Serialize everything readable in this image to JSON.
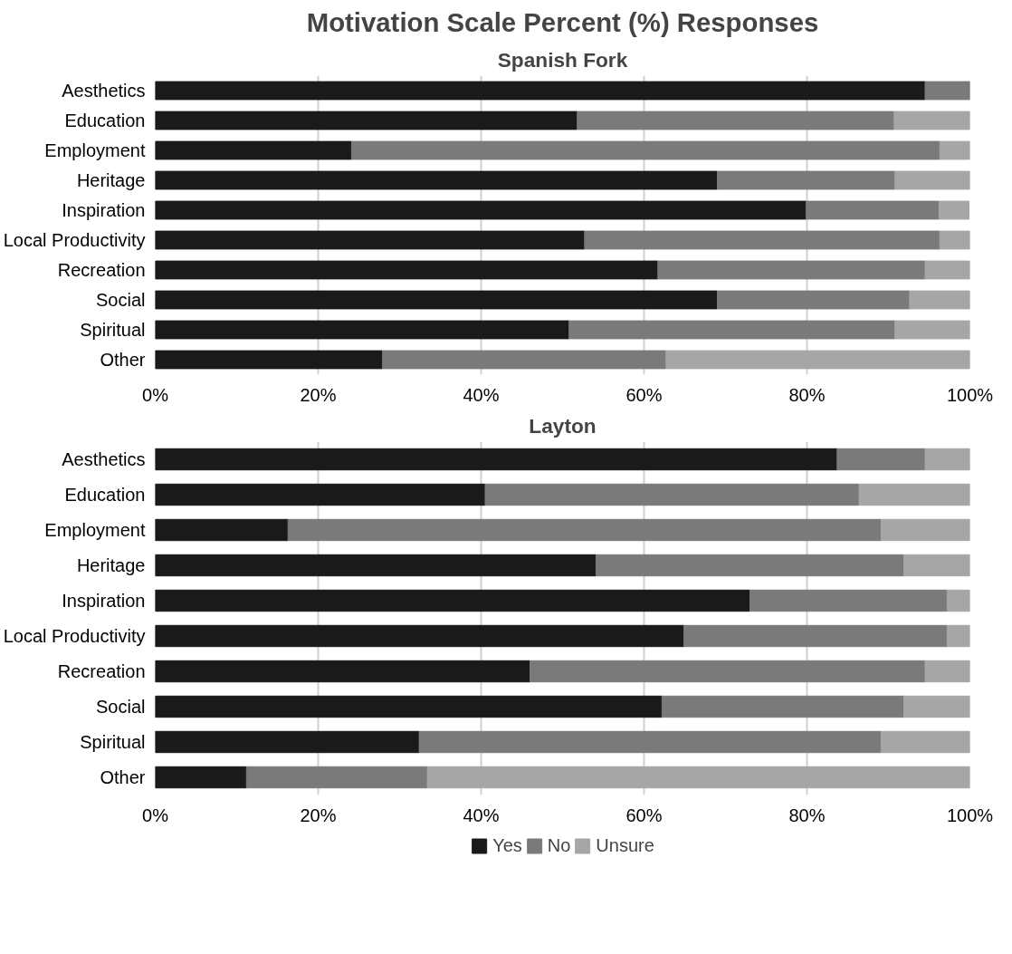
{
  "chart_data": [
    {
      "type": "bar",
      "orientation": "horizontal",
      "stacked": true,
      "title": "Motivation Scale Percent (%) Responses",
      "subtitle": "Spanish Fork",
      "categories": [
        "Aesthetics",
        "Education",
        "Employment",
        "Heritage",
        "Inspiration",
        "Local Productivity",
        "Recreation",
        "Social",
        "Spiritual",
        "Other"
      ],
      "series": [
        {
          "color": "#1a1a1a",
          "values": [
            94.5,
            51.8,
            24.1,
            69.0,
            79.9,
            52.7,
            61.7,
            69.0,
            50.8,
            27.9
          ]
        },
        {
          "color": "#7a7a7a",
          "values": [
            5.5,
            38.9,
            72.2,
            21.8,
            16.3,
            43.6,
            32.8,
            23.6,
            40.0,
            34.8
          ]
        },
        {
          "color": "#a6a6a6",
          "values": [
            0,
            9.3,
            3.7,
            9.2,
            3.7,
            3.7,
            5.5,
            7.4,
            9.2,
            37.3
          ]
        }
      ],
      "xlim": [
        0,
        100
      ],
      "xticks": [
        {
          "value": 0,
          "label": "0%"
        },
        {
          "value": 20,
          "label": "20%"
        },
        {
          "value": 40,
          "label": "40%"
        },
        {
          "value": 60,
          "label": "60%"
        },
        {
          "value": 80,
          "label": "80%"
        },
        {
          "value": 100,
          "label": "100%"
        }
      ],
      "grid": "x"
    },
    {
      "type": "bar",
      "orientation": "horizontal",
      "stacked": true,
      "title": "Layton",
      "categories": [
        "Aesthetics",
        "Education",
        "Employment",
        "Heritage",
        "Inspiration",
        "Local Productivity",
        "Recreation",
        "Social",
        "Spiritual",
        "Other"
      ],
      "series": [
        {
          "name": "Yes",
          "color": "#1a1a1a",
          "values": [
            83.7,
            40.5,
            16.3,
            54.1,
            73.0,
            64.9,
            46.0,
            62.2,
            32.4,
            11.2
          ]
        },
        {
          "name": "No",
          "color": "#7a7a7a",
          "values": [
            10.8,
            45.9,
            72.8,
            37.8,
            24.2,
            32.3,
            48.5,
            29.7,
            56.7,
            22.2
          ]
        },
        {
          "name": "Unsure",
          "color": "#a6a6a6",
          "values": [
            5.5,
            13.6,
            10.9,
            8.1,
            2.8,
            2.8,
            5.5,
            8.1,
            10.9,
            66.6
          ]
        }
      ],
      "xlim": [
        0,
        100
      ],
      "xticks": [
        {
          "value": 0,
          "label": "0%"
        },
        {
          "value": 20,
          "label": "20%"
        },
        {
          "value": 40,
          "label": "40%"
        },
        {
          "value": 60,
          "label": "60%"
        },
        {
          "value": 80,
          "label": "80%"
        },
        {
          "value": 100,
          "label": "100%"
        }
      ],
      "grid": "x",
      "legend": "bottom"
    }
  ]
}
